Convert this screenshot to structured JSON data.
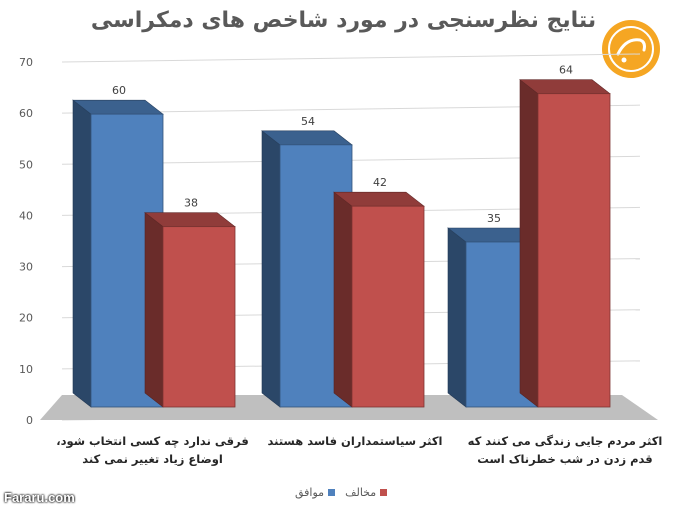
{
  "chart_data": {
    "type": "bar",
    "title": "نتایج نظرسنجی در مورد شاخص های دمکراسی",
    "categories": [
      "فرقی ندارد چه کسی انتخاب شود، اوضاع زیاد تغییر نمی کند",
      "اکثر سیاستمداران فاسد هستند",
      "اکثر مردم جایی زندگی می کنند که قدم زدن در شب خطرناک است"
    ],
    "series": [
      {
        "name": "موافق",
        "values": [
          60,
          54,
          35
        ],
        "color": "#4f81bd"
      },
      {
        "name": "مخالف",
        "values": [
          38,
          42,
          64
        ],
        "color": "#c0504d"
      }
    ],
    "ylim": [
      0,
      70
    ],
    "yticks": [
      0,
      10,
      20,
      30,
      40,
      50,
      60,
      70
    ],
    "grid": true,
    "legend": "bottom"
  },
  "watermark": "Fararu.com",
  "logo_text": "فرارو"
}
